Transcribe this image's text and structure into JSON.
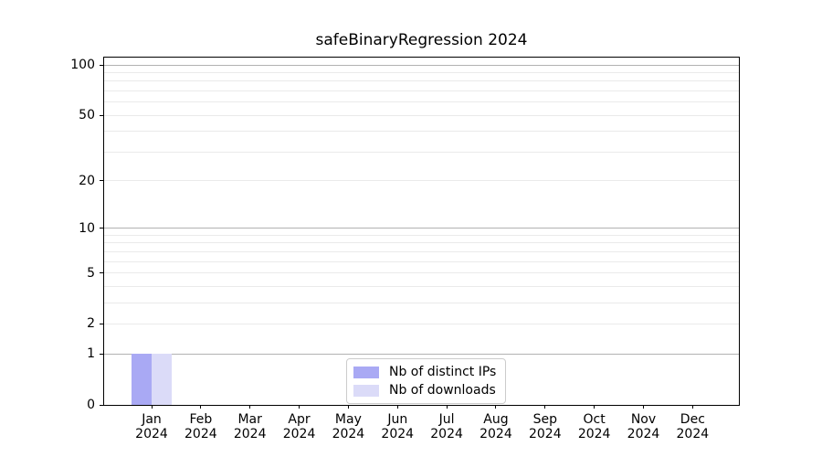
{
  "chart": {
    "title": "safeBinaryRegression 2024"
  },
  "chart_data": {
    "type": "bar",
    "title": "safeBinaryRegression 2024",
    "categories": [
      "Jan 2024",
      "Feb 2024",
      "Mar 2024",
      "Apr 2024",
      "May 2024",
      "Jun 2024",
      "Jul 2024",
      "Aug 2024",
      "Sep 2024",
      "Oct 2024",
      "Nov 2024",
      "Dec 2024"
    ],
    "x_tick_labels": [
      {
        "line1": "Jan",
        "line2": "2024"
      },
      {
        "line1": "Feb",
        "line2": "2024"
      },
      {
        "line1": "Mar",
        "line2": "2024"
      },
      {
        "line1": "Apr",
        "line2": "2024"
      },
      {
        "line1": "May",
        "line2": "2024"
      },
      {
        "line1": "Jun",
        "line2": "2024"
      },
      {
        "line1": "Jul",
        "line2": "2024"
      },
      {
        "line1": "Aug",
        "line2": "2024"
      },
      {
        "line1": "Sep",
        "line2": "2024"
      },
      {
        "line1": "Oct",
        "line2": "2024"
      },
      {
        "line1": "Nov",
        "line2": "2024"
      },
      {
        "line1": "Dec",
        "line2": "2024"
      }
    ],
    "series": [
      {
        "name": "Nb of distinct IPs",
        "color": "#a9a9f4",
        "values": [
          1,
          0,
          0,
          0,
          0,
          0,
          0,
          0,
          0,
          0,
          0,
          0
        ]
      },
      {
        "name": "Nb of downloads",
        "color": "#dbdbf8",
        "values": [
          1,
          0,
          0,
          0,
          0,
          0,
          0,
          0,
          0,
          0,
          0,
          0
        ]
      }
    ],
    "xlabel": "",
    "ylabel": "",
    "yscale": "log10(1+x)",
    "ylim": [
      0,
      100
    ],
    "yticks": [
      0,
      1,
      2,
      5,
      10,
      20,
      50,
      100
    ],
    "major_gridline_values": [
      1,
      10,
      100
    ],
    "minor_gridline_values": [
      2,
      3,
      4,
      5,
      6,
      7,
      8,
      9,
      20,
      30,
      40,
      50,
      60,
      70,
      80,
      90
    ],
    "grid": true,
    "legend_position": "inside bottom-center",
    "colors": {
      "distinct_ips_bar": "#a9a9f4",
      "downloads_bar": "#dbdbf8",
      "major_grid": "#b2b2b2",
      "minor_grid": "#eaeaea",
      "axis": "#000000",
      "legend_border": "#cccccc"
    }
  }
}
